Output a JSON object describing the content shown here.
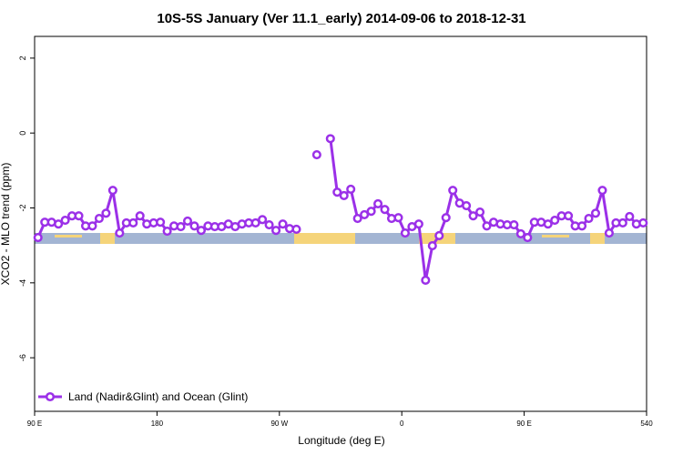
{
  "chart_data": {
    "type": "line",
    "title": "10S-5S January (Ver 11.1_early)   2014-09-06 to 2018-12-31",
    "x_label": "Longitude (deg E)",
    "y_label": "XCO2 - MLO trend (ppm)",
    "x": [
      92.5,
      97.5,
      102.5,
      107.5,
      112.5,
      117.5,
      122.5,
      127.5,
      132.5,
      137.5,
      142.5,
      147.5,
      152.5,
      157.5,
      162.5,
      167.5,
      172.5,
      177.5,
      182.5,
      187.5,
      192.5,
      197.5,
      202.5,
      207.5,
      212.5,
      217.5,
      222.5,
      227.5,
      232.5,
      237.5,
      242.5,
      247.5,
      252.5,
      257.5,
      262.5,
      267.5,
      272.5,
      277.5,
      282.5,
      287.5,
      292.5,
      297.5,
      302.5,
      307.5,
      312.5,
      317.5,
      322.5,
      327.5,
      332.5,
      337.5,
      342.5,
      347.5,
      352.5,
      357.5,
      362.5,
      367.5,
      372.5,
      377.5,
      382.5,
      387.5,
      392.5,
      397.5,
      402.5,
      407.5,
      412.5,
      417.5,
      422.5,
      427.5,
      432.5,
      437.5,
      442.5,
      447.5,
      452.5,
      457.5,
      462.5,
      467.5,
      472.5,
      477.5,
      482.5,
      487.5,
      492.5,
      497.5,
      502.5,
      507.5,
      512.5,
      517.5,
      522.5,
      527.5,
      532.5,
      537.5
    ],
    "series": [
      {
        "name": "Land (Nadir&Glint) and Ocean (Glint)",
        "color": "#9b30e8",
        "values": [
          -2.79,
          -2.38,
          -2.38,
          -2.43,
          -2.33,
          -2.21,
          -2.21,
          -2.48,
          -2.48,
          -2.28,
          -2.14,
          -1.53,
          -2.67,
          -2.4,
          -2.4,
          -2.21,
          -2.43,
          -2.4,
          -2.38,
          -2.62,
          -2.48,
          -2.5,
          -2.35,
          -2.48,
          -2.6,
          -2.48,
          -2.5,
          -2.5,
          -2.43,
          -2.5,
          -2.43,
          -2.4,
          -2.4,
          -2.31,
          -2.45,
          -2.6,
          -2.43,
          -2.55,
          -2.57,
          null,
          null,
          -0.58,
          null,
          -0.15,
          -1.58,
          -1.67,
          -1.5,
          -2.28,
          -2.18,
          -2.09,
          -1.89,
          -2.04,
          -2.28,
          -2.26,
          -2.67,
          -2.5,
          -2.43,
          -3.93,
          -3.01,
          -2.74,
          -2.26,
          -1.53,
          -1.87,
          -1.94,
          -2.21,
          -2.11,
          -2.48,
          -2.38,
          -2.43,
          -2.45,
          -2.45,
          -2.69,
          -2.79,
          -2.38,
          -2.38,
          -2.43,
          -2.33,
          -2.21,
          -2.21,
          -2.48,
          -2.48,
          -2.28,
          -2.14,
          -1.53,
          -2.67,
          -2.4,
          -2.4,
          -2.23,
          -2.43,
          -2.4
        ]
      }
    ],
    "xlim": [
      90,
      540
    ],
    "xticks": [
      {
        "value": 90,
        "label": "90 E"
      },
      180,
      {
        "value": 270,
        "label": "90 W"
      },
      {
        "value": 360,
        "label": "0"
      },
      {
        "value": 450,
        "label": "90 E"
      },
      540
    ],
    "ylim": [
      -7.43,
      2.58
    ],
    "yticks": [
      -6,
      -4,
      -2,
      0,
      2
    ],
    "legend": "bottom-left"
  }
}
